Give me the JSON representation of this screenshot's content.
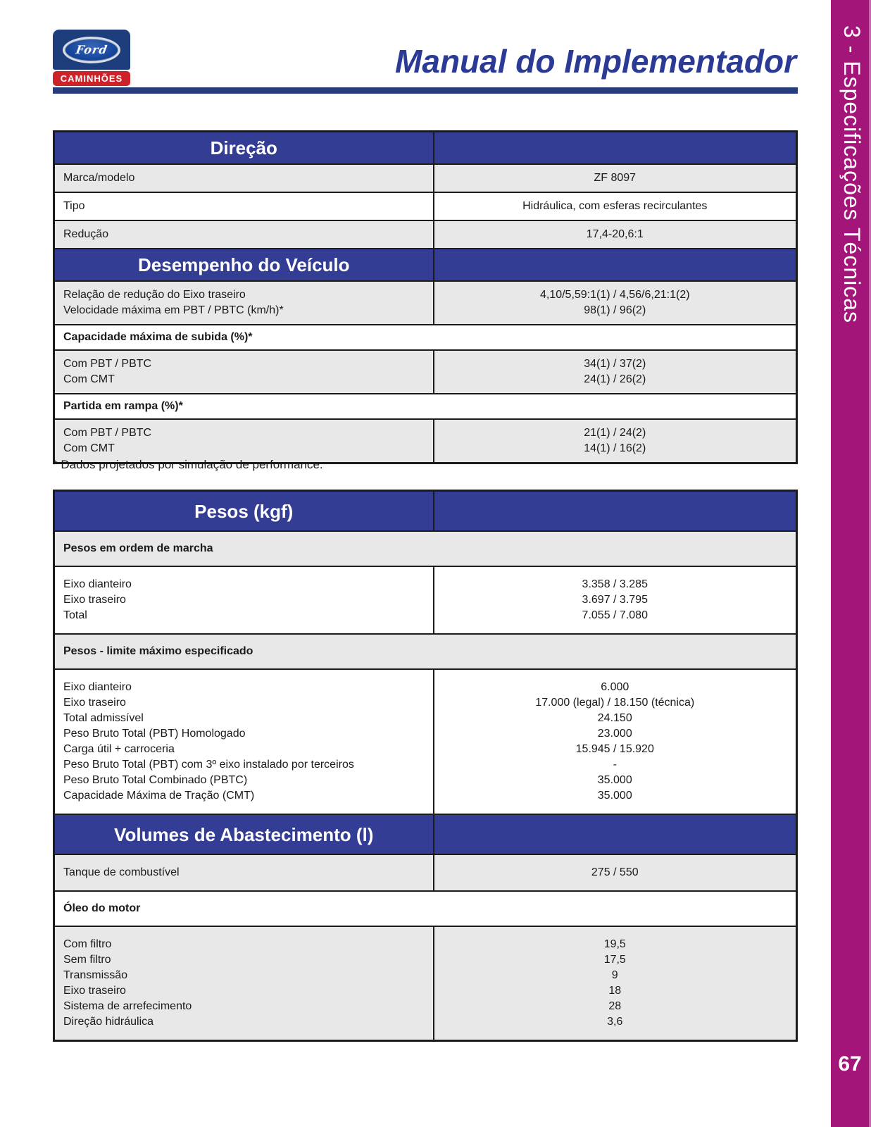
{
  "colors": {
    "header_blue": "#333d94",
    "title_blue": "#2b3a94",
    "rule_navy": "#263c7e",
    "sidebar_magenta": "#a31578",
    "sidebar_edge": "#c766aa",
    "logo_navy": "#1e3d7d",
    "logo_red": "#cc2229",
    "row_gray": "#e8e8e8",
    "border_black": "#1b1b1b"
  },
  "header": {
    "title": "Manual do Implementador",
    "logo": {
      "brand": "Ford",
      "subtitle": "CAMINHÕES"
    }
  },
  "sidebar": {
    "chapter_label": "3 - Especificações Técnicas",
    "page_number": "67"
  },
  "footnote": "* Dados projetados por simulação de performance.",
  "tables": [
    {
      "id": "direcao-desempenho",
      "rows": [
        {
          "type": "header",
          "label": "Direção"
        },
        {
          "type": "data",
          "bg": "gray",
          "lines": [
            {
              "label": "Marca/modelo",
              "value": "ZF 8097"
            }
          ]
        },
        {
          "type": "data",
          "bg": "white",
          "lines": [
            {
              "label": "Tipo",
              "value": "Hidráulica, com esferas recirculantes"
            }
          ]
        },
        {
          "type": "data",
          "bg": "gray",
          "lines": [
            {
              "label": "Redução",
              "value": "17,4-20,6:1"
            }
          ]
        },
        {
          "type": "header",
          "label": "Desempenho do Veículo"
        },
        {
          "type": "data",
          "bg": "gray",
          "lines": [
            {
              "label": "Relação de redução do Eixo traseiro",
              "value": "4,10/5,59:1(1) / 4,56/6,21:1(2)"
            },
            {
              "label": "Velocidade máxima em PBT / PBTC (km/h)*",
              "value": "98(1) / 96(2)"
            }
          ]
        },
        {
          "type": "section",
          "bg": "white",
          "label": "Capacidade máxima de subida (%)*"
        },
        {
          "type": "data",
          "bg": "gray",
          "lines": [
            {
              "label": "Com PBT / PBTC",
              "value": "34(1) / 37(2)"
            },
            {
              "label": "Com CMT",
              "value": "24(1) / 26(2)"
            }
          ]
        },
        {
          "type": "section",
          "bg": "white",
          "label": "Partida em rampa (%)*"
        },
        {
          "type": "data",
          "bg": "gray",
          "lines": [
            {
              "label": "Com PBT / PBTC",
              "value": "21(1) / 24(2)"
            },
            {
              "label": "Com CMT",
              "value": "14(1) / 16(2)"
            }
          ]
        }
      ]
    },
    {
      "id": "pesos-volumes",
      "rows": [
        {
          "type": "header",
          "label": "Pesos (kgf)"
        },
        {
          "type": "section",
          "bg": "gray",
          "label": "Pesos em ordem de marcha"
        },
        {
          "type": "data",
          "bg": "white",
          "lines": [
            {
              "label": "Eixo dianteiro",
              "value": "3.358 / 3.285"
            },
            {
              "label": "Eixo traseiro",
              "value": "3.697 / 3.795"
            },
            {
              "label": "Total",
              "value": "7.055 / 7.080"
            }
          ]
        },
        {
          "type": "section",
          "bg": "gray",
          "label": "Pesos - limite máximo especificado"
        },
        {
          "type": "data",
          "bg": "white",
          "lines": [
            {
              "label": "Eixo dianteiro",
              "value": "6.000"
            },
            {
              "label": "Eixo traseiro",
              "value": "17.000 (legal) / 18.150 (técnica)"
            },
            {
              "label": "Total admissível",
              "value": "24.150"
            },
            {
              "label": "Peso Bruto Total (PBT) Homologado",
              "value": "23.000"
            },
            {
              "label": "Carga útil + carroceria",
              "value": "15.945 / 15.920"
            },
            {
              "label": "Peso Bruto Total (PBT) com 3º eixo instalado por terceiros",
              "value": "-"
            },
            {
              "label": "Peso Bruto Total Combinado (PBTC)",
              "value": "35.000"
            },
            {
              "label": "Capacidade Máxima de Tração (CMT)",
              "value": "35.000"
            }
          ]
        },
        {
          "type": "header",
          "label": "Volumes de Abastecimento (l)"
        },
        {
          "type": "data",
          "bg": "gray",
          "lines": [
            {
              "label": "Tanque de combustível",
              "value": "275 / 550"
            }
          ]
        },
        {
          "type": "section",
          "bg": "white",
          "label": "Óleo do motor"
        },
        {
          "type": "data",
          "bg": "gray",
          "lines": [
            {
              "label": "Com filtro",
              "value": "19,5"
            },
            {
              "label": "Sem filtro",
              "value": "17,5"
            },
            {
              "label": "Transmissão",
              "value": "9"
            },
            {
              "label": "Eixo traseiro",
              "value": "18"
            },
            {
              "label": "Sistema de arrefecimento",
              "value": "28"
            },
            {
              "label": "Direção hidráulica",
              "value": "3,6"
            }
          ]
        }
      ]
    }
  ]
}
